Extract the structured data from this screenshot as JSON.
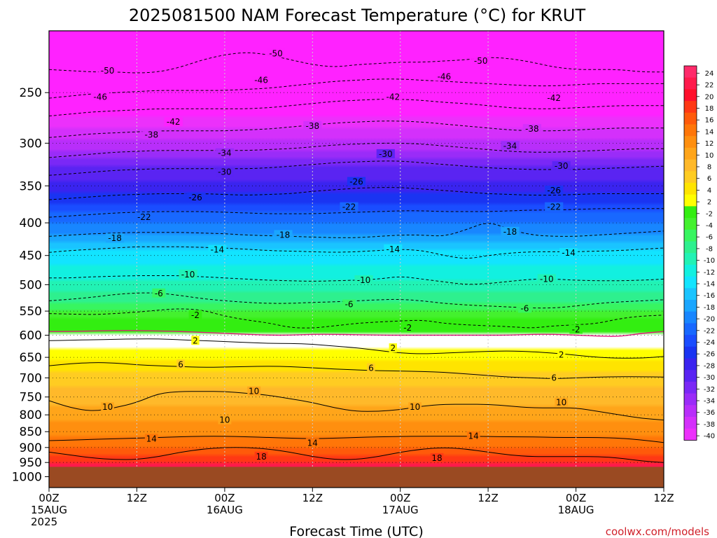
{
  "title": "2025081500 NAM Forecast Temperature (°C) for KRUT",
  "xlabel": "Forecast Time (UTC)",
  "credit": "coolwx.com/models",
  "chart_data": {
    "type": "heatmap",
    "title": "2025081500 NAM Forecast Temperature (°C) for KRUT",
    "xlabel": "Forecast Time (UTC)",
    "ylabel": "",
    "yscale": "log",
    "y_inverted": true,
    "ylim": [
      1040,
      200
    ],
    "xlim": [
      0,
      84
    ],
    "yticks": [
      250,
      300,
      350,
      400,
      450,
      500,
      550,
      600,
      650,
      700,
      750,
      800,
      850,
      900,
      950,
      1000
    ],
    "xticks": [
      {
        "hour": 0,
        "labels": [
          "00Z",
          "15AUG",
          "2025"
        ]
      },
      {
        "hour": 12,
        "labels": [
          "12Z"
        ]
      },
      {
        "hour": 24,
        "labels": [
          "00Z",
          "16AUG"
        ]
      },
      {
        "hour": 36,
        "labels": [
          "12Z"
        ]
      },
      {
        "hour": 48,
        "labels": [
          "00Z",
          "17AUG"
        ]
      },
      {
        "hour": 60,
        "labels": [
          "12Z"
        ]
      },
      {
        "hour": 72,
        "labels": [
          "00Z",
          "18AUG"
        ]
      },
      {
        "hour": 84,
        "labels": [
          "12Z"
        ]
      }
    ],
    "grid": true,
    "ground_level_hpa": 965,
    "colorbar": {
      "placement": "right",
      "levels": [
        24,
        22,
        20,
        18,
        16,
        14,
        12,
        10,
        8,
        6,
        4,
        2,
        -2,
        -4,
        -6,
        -8,
        -10,
        -12,
        -14,
        -16,
        -18,
        -20,
        -22,
        -24,
        -26,
        -28,
        -30,
        -32,
        -34,
        -36,
        -38,
        -40
      ],
      "labels": [
        "24",
        "22",
        "20",
        "18",
        "16",
        "14",
        "12",
        "10",
        "8",
        "6",
        "4",
        "2",
        "-2",
        "-4",
        "-6",
        "-8",
        "-10",
        "-12",
        "-14",
        "-16",
        "-18",
        "-20",
        "-22",
        "-24",
        "-26",
        "-28",
        "-30",
        "-32",
        "-34",
        "-36",
        "-38",
        "-40"
      ]
    },
    "isotherms": [
      {
        "value": 20,
        "p": [
          952,
          952,
          952,
          952,
          952,
          952,
          952,
          952,
          952,
          952,
          952,
          952,
          952,
          952,
          952,
          952,
          952,
          952,
          952,
          952,
          952,
          952,
          952,
          952,
          952,
          952,
          952,
          952,
          952
        ],
        "hidden": true
      },
      {
        "value": 18,
        "p": [
          915,
          925,
          935,
          940,
          940,
          930,
          915,
          905,
          900,
          900,
          905,
          915,
          930,
          940,
          940,
          930,
          915,
          905,
          900,
          905,
          915,
          925,
          930,
          930,
          930,
          930,
          935,
          945,
          950
        ]
      },
      {
        "value": 14,
        "p": [
          878,
          876,
          874,
          872,
          870,
          868,
          866,
          864,
          864,
          866,
          868,
          870,
          872,
          870,
          868,
          866,
          865,
          864,
          864,
          864,
          865,
          866,
          866,
          868,
          868,
          868,
          870,
          876,
          884
        ]
      },
      {
        "value": 10,
        "p": [
          760,
          780,
          790,
          780,
          765,
          740,
          735,
          735,
          735,
          740,
          745,
          755,
          765,
          780,
          790,
          790,
          785,
          775,
          770,
          770,
          770,
          775,
          780,
          780,
          780,
          790,
          800,
          810,
          815
        ]
      },
      {
        "value": 6,
        "p": [
          670,
          665,
          662,
          663,
          668,
          670,
          672,
          674,
          673,
          672,
          671,
          672,
          675,
          678,
          680,
          682,
          683,
          684,
          686,
          690,
          694,
          698,
          700,
          702,
          700,
          698,
          697,
          697,
          698
        ]
      },
      {
        "value": 2,
        "p": [
          612,
          611,
          610,
          609,
          608,
          608,
          610,
          612,
          614,
          616,
          618,
          618,
          620,
          624,
          628,
          634,
          640,
          642,
          640,
          638,
          636,
          635,
          637,
          640,
          645,
          650,
          652,
          652,
          648
        ]
      },
      {
        "value": 0,
        "p": [
          592,
          592,
          591,
          590,
          590,
          591,
          592,
          594,
          596,
          598,
          600,
          600,
          598,
          598,
          599,
          600,
          600,
          600,
          600,
          600,
          600,
          600,
          598,
          598,
          600,
          602,
          603,
          596,
          592
        ],
        "freezing": true
      },
      {
        "value": -2,
        "p": [
          555,
          556,
          557,
          555,
          552,
          548,
          545,
          548,
          560,
          568,
          574,
          584,
          585,
          580,
          575,
          572,
          570,
          568,
          575,
          578,
          580,
          582,
          585,
          580,
          578,
          575,
          565,
          560,
          558
        ]
      },
      {
        "value": -6,
        "p": [
          530,
          527,
          523,
          518,
          515,
          515,
          520,
          526,
          530,
          533,
          535,
          535,
          533,
          532,
          530,
          528,
          527,
          530,
          535,
          538,
          540,
          542,
          544,
          544,
          540,
          535,
          532,
          530,
          528
        ]
      },
      {
        "value": -10,
        "p": [
          488,
          488,
          486,
          485,
          484,
          484,
          484,
          486,
          488,
          490,
          492,
          493,
          494,
          493,
          492,
          490,
          485,
          490,
          495,
          500,
          498,
          494,
          490,
          490,
          492,
          493,
          493,
          492,
          490
        ]
      },
      {
        "value": -14,
        "p": [
          445,
          442,
          440,
          438,
          436,
          436,
          436,
          437,
          438,
          440,
          442,
          443,
          444,
          445,
          444,
          442,
          440,
          442,
          450,
          456,
          450,
          446,
          444,
          444,
          444,
          443,
          442,
          440,
          438
        ]
      },
      {
        "value": -18,
        "p": [
          420,
          418,
          416,
          415,
          414,
          414,
          414,
          415,
          416,
          418,
          419,
          420,
          421,
          422,
          422,
          420,
          418,
          418,
          420,
          410,
          398,
          410,
          418,
          420,
          420,
          418,
          416,
          414,
          412
        ]
      },
      {
        "value": -22,
        "p": [
          392,
          390,
          388,
          386,
          385,
          384,
          384,
          384,
          385,
          386,
          387,
          387,
          387,
          386,
          385,
          384,
          383,
          383,
          384,
          384,
          384,
          383,
          382,
          382,
          381,
          380,
          380,
          380,
          380
        ]
      },
      {
        "value": -26,
        "p": [
          368,
          366,
          364,
          362,
          361,
          360,
          360,
          360,
          361,
          362,
          361,
          360,
          357,
          355,
          353,
          352,
          352,
          354,
          356,
          358,
          360,
          361,
          362,
          362,
          361,
          360,
          360,
          360,
          360
        ]
      },
      {
        "value": -30,
        "p": [
          337,
          335,
          333,
          331,
          330,
          329,
          329,
          329,
          329,
          329,
          328,
          326,
          324,
          322,
          321,
          320,
          320,
          322,
          324,
          326,
          328,
          329,
          330,
          330,
          330,
          329,
          328,
          327,
          326
        ]
      },
      {
        "value": -34,
        "p": [
          316,
          314,
          312,
          310,
          309,
          308,
          308,
          308,
          308,
          308,
          307,
          306,
          304,
          302,
          301,
          300,
          300,
          301,
          303,
          305,
          307,
          309,
          310,
          310,
          309,
          308,
          307,
          306,
          306
        ]
      },
      {
        "value": -38,
        "p": [
          294,
          292,
          290,
          289,
          288,
          287,
          287,
          287,
          287,
          286,
          285,
          283,
          281,
          279,
          278,
          277,
          277,
          278,
          280,
          282,
          284,
          286,
          287,
          287,
          286,
          285,
          284,
          284,
          284
        ]
      },
      {
        "value": -42,
        "p": [
          272,
          270,
          268,
          267,
          266,
          265,
          265,
          265,
          265,
          265,
          264,
          262,
          260,
          258,
          257,
          256,
          256,
          257,
          259,
          260,
          262,
          264,
          265,
          265,
          264,
          263,
          262,
          262,
          262
        ]
      },
      {
        "value": -46,
        "p": [
          255,
          253,
          251,
          250,
          249,
          248,
          248,
          248,
          248,
          247,
          246,
          244,
          242,
          240,
          239,
          238,
          238,
          239,
          240,
          241,
          242,
          243,
          244,
          244,
          243,
          242,
          242,
          242,
          242
        ]
      },
      {
        "value": -50,
        "p": [
          230,
          231,
          232,
          232,
          233,
          232,
          228,
          222,
          218,
          216,
          218,
          222,
          226,
          228,
          226,
          225,
          224,
          224,
          223,
          222,
          220,
          221,
          224,
          228,
          230,
          230,
          230,
          232,
          232
        ]
      }
    ],
    "contour_labels": [
      {
        "value": "-50",
        "hour": 31,
        "p": 217
      },
      {
        "value": "-50",
        "hour": 59,
        "p": 223
      },
      {
        "value": "-50",
        "hour": 8,
        "p": 231
      },
      {
        "value": "-46",
        "hour": 29,
        "p": 239
      },
      {
        "value": "-46",
        "hour": 54,
        "p": 236
      },
      {
        "value": "-46",
        "hour": 7,
        "p": 254
      },
      {
        "value": "-42",
        "hour": 17,
        "p": 278
      },
      {
        "value": "-42",
        "hour": 47,
        "p": 254
      },
      {
        "value": "-42",
        "hour": 69,
        "p": 255
      },
      {
        "value": "-38",
        "hour": 14,
        "p": 291
      },
      {
        "value": "-38",
        "hour": 36,
        "p": 282
      },
      {
        "value": "-38",
        "hour": 66,
        "p": 285
      },
      {
        "value": "-34",
        "hour": 24,
        "p": 311
      },
      {
        "value": "-34",
        "hour": 63,
        "p": 303
      },
      {
        "value": "-30",
        "hour": 46,
        "p": 312
      },
      {
        "value": "-30",
        "hour": 24,
        "p": 333
      },
      {
        "value": "-30",
        "hour": 70,
        "p": 326
      },
      {
        "value": "-26",
        "hour": 42,
        "p": 345
      },
      {
        "value": "-26",
        "hour": 20,
        "p": 365
      },
      {
        "value": "-26",
        "hour": 69,
        "p": 356
      },
      {
        "value": "-22",
        "hour": 13,
        "p": 392
      },
      {
        "value": "-22",
        "hour": 41,
        "p": 378
      },
      {
        "value": "-22",
        "hour": 69,
        "p": 378
      },
      {
        "value": "-18",
        "hour": 9,
        "p": 423
      },
      {
        "value": "-18",
        "hour": 32,
        "p": 418
      },
      {
        "value": "-18",
        "hour": 63,
        "p": 413
      },
      {
        "value": "-14",
        "hour": 23,
        "p": 441
      },
      {
        "value": "-14",
        "hour": 47,
        "p": 440
      },
      {
        "value": "-14",
        "hour": 71,
        "p": 446
      },
      {
        "value": "-10",
        "hour": 19,
        "p": 482
      },
      {
        "value": "-10",
        "hour": 43,
        "p": 492
      },
      {
        "value": "-10",
        "hour": 68,
        "p": 490
      },
      {
        "value": "-6",
        "hour": 15,
        "p": 516
      },
      {
        "value": "-6",
        "hour": 41,
        "p": 537
      },
      {
        "value": "-6",
        "hour": 65,
        "p": 545
      },
      {
        "value": "-2",
        "hour": 20,
        "p": 558
      },
      {
        "value": "-2",
        "hour": 49,
        "p": 584
      },
      {
        "value": "-2",
        "hour": 72,
        "p": 588
      },
      {
        "value": "2",
        "hour": 20,
        "p": 612
      },
      {
        "value": "2",
        "hour": 47,
        "p": 629
      },
      {
        "value": "2",
        "hour": 70,
        "p": 644
      },
      {
        "value": "6",
        "hour": 18,
        "p": 667
      },
      {
        "value": "6",
        "hour": 44,
        "p": 676
      },
      {
        "value": "6",
        "hour": 69,
        "p": 700
      },
      {
        "value": "10",
        "hour": 28,
        "p": 735
      },
      {
        "value": "10",
        "hour": 8,
        "p": 778
      },
      {
        "value": "10",
        "hour": 24,
        "p": 815
      },
      {
        "value": "10",
        "hour": 50,
        "p": 778
      },
      {
        "value": "10",
        "hour": 70,
        "p": 765
      },
      {
        "value": "14",
        "hour": 14,
        "p": 872
      },
      {
        "value": "14",
        "hour": 36,
        "p": 886
      },
      {
        "value": "14",
        "hour": 58,
        "p": 864
      },
      {
        "value": "18",
        "hour": 29,
        "p": 930
      },
      {
        "value": "18",
        "hour": 53,
        "p": 935
      }
    ]
  }
}
